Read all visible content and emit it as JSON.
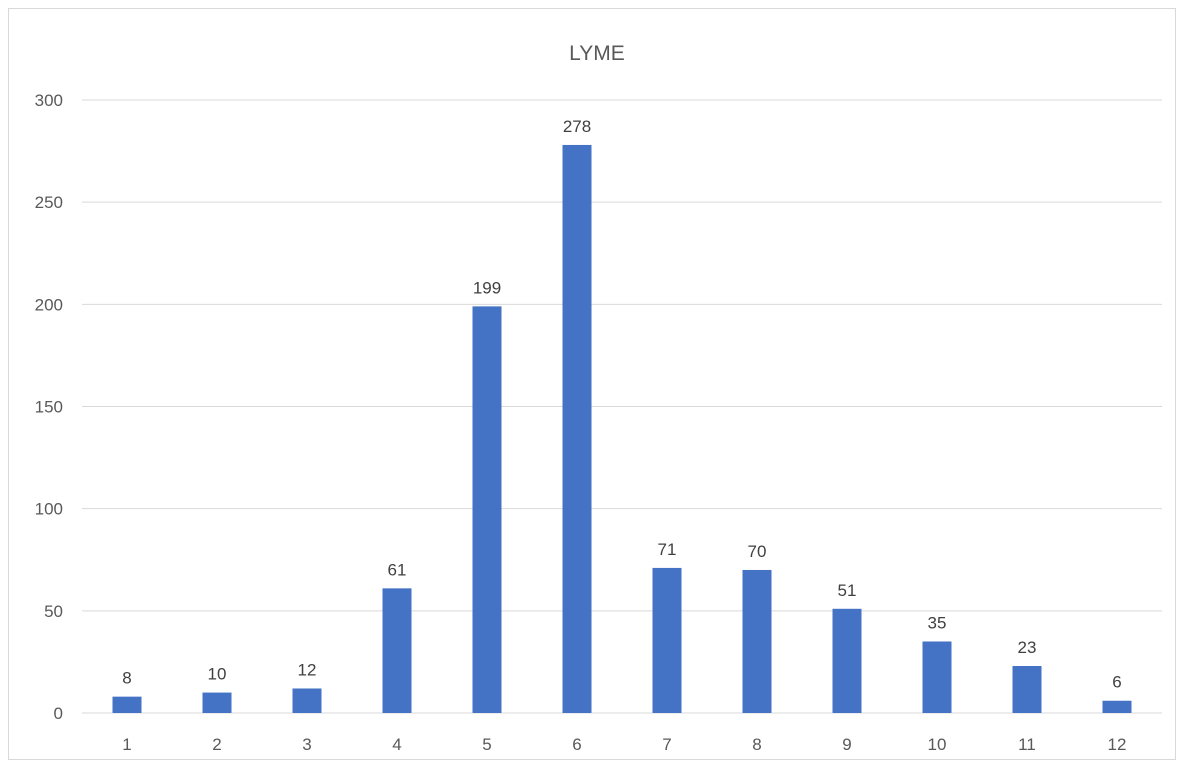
{
  "chart_data": {
    "type": "bar",
    "title": "LYME",
    "xlabel": "",
    "ylabel": "",
    "categories": [
      "1",
      "2",
      "3",
      "4",
      "5",
      "6",
      "7",
      "8",
      "9",
      "10",
      "11",
      "12"
    ],
    "values": [
      8,
      10,
      12,
      61,
      199,
      278,
      71,
      70,
      51,
      35,
      23,
      6
    ],
    "ylim": [
      0,
      300
    ],
    "yticks": [
      0,
      50,
      100,
      150,
      200,
      250,
      300
    ],
    "grid": true,
    "legend": "none",
    "data_labels": true,
    "colors": {
      "bar": "#4472c4",
      "grid": "#d9d9d9",
      "text": "#595959"
    }
  }
}
